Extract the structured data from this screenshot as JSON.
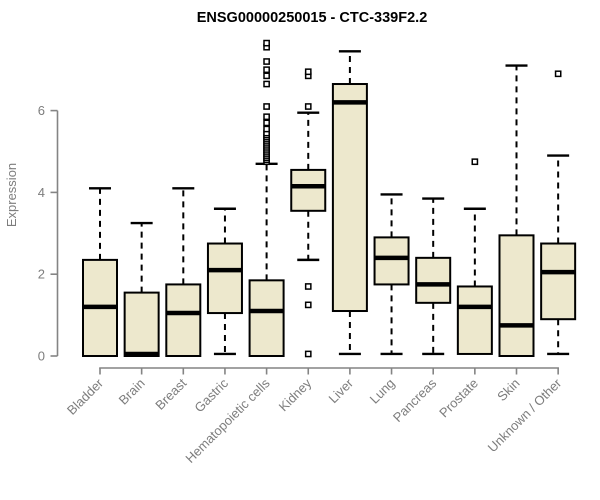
{
  "title": "ENSG00000250015 - CTC-339F2.2",
  "chart_data": {
    "type": "boxplot",
    "title": "ENSG00000250015 - CTC-339F2.2",
    "ylabel": "Expression",
    "xlabel": "",
    "ylim": [
      0,
      7.8
    ],
    "yticks": [
      0,
      2,
      4,
      6
    ],
    "grid": false,
    "legend": "none",
    "categories": [
      "Bladder",
      "Brain",
      "Breast",
      "Gastric",
      "Hematopoietic cells",
      "Kidney",
      "Liver",
      "Lung",
      "Pancreas",
      "Prostate",
      "Skin",
      "Unknown / Other"
    ],
    "boxes": [
      {
        "category": "Bladder",
        "whisker_low": 0.0,
        "q1": 0.0,
        "median": 1.2,
        "q3": 2.35,
        "whisker_high": 4.1,
        "outliers": []
      },
      {
        "category": "Brain",
        "whisker_low": 0.0,
        "q1": 0.0,
        "median": 0.05,
        "q3": 1.55,
        "whisker_high": 3.25,
        "outliers": []
      },
      {
        "category": "Breast",
        "whisker_low": 0.0,
        "q1": 0.0,
        "median": 1.05,
        "q3": 1.75,
        "whisker_high": 4.1,
        "outliers": []
      },
      {
        "category": "Gastric",
        "whisker_low": 0.05,
        "q1": 1.05,
        "median": 2.1,
        "q3": 2.75,
        "whisker_high": 3.6,
        "outliers": []
      },
      {
        "category": "Hematopoietic cells",
        "whisker_low": 0.0,
        "q1": 0.0,
        "median": 1.1,
        "q3": 1.85,
        "whisker_high": 4.7,
        "outliers": [
          4.75,
          4.8,
          4.85,
          4.9,
          4.95,
          5.0,
          5.05,
          5.1,
          5.15,
          5.2,
          5.25,
          5.3,
          5.35,
          5.4,
          5.45,
          5.55,
          5.7,
          5.85,
          6.1,
          6.65,
          6.85,
          7.0,
          7.2,
          7.55,
          7.65
        ]
      },
      {
        "category": "Kidney",
        "whisker_low": 2.35,
        "q1": 3.55,
        "median": 4.15,
        "q3": 4.55,
        "whisker_high": 5.95,
        "outliers": [
          6.1,
          6.85,
          6.95,
          1.7,
          1.25,
          0.05
        ]
      },
      {
        "category": "Liver",
        "whisker_low": 0.05,
        "q1": 1.1,
        "median": 6.2,
        "q3": 6.65,
        "whisker_high": 7.45,
        "outliers": []
      },
      {
        "category": "Lung",
        "whisker_low": 0.05,
        "q1": 1.75,
        "median": 2.4,
        "q3": 2.9,
        "whisker_high": 3.95,
        "outliers": []
      },
      {
        "category": "Pancreas",
        "whisker_low": 0.05,
        "q1": 1.3,
        "median": 1.75,
        "q3": 2.4,
        "whisker_high": 3.85,
        "outliers": []
      },
      {
        "category": "Prostate",
        "whisker_low": 0.05,
        "q1": 0.05,
        "median": 1.2,
        "q3": 1.7,
        "whisker_high": 3.6,
        "outliers": [
          4.75
        ]
      },
      {
        "category": "Skin",
        "whisker_low": 0.0,
        "q1": 0.0,
        "median": 0.75,
        "q3": 2.95,
        "whisker_high": 7.1,
        "outliers": []
      },
      {
        "category": "Unknown / Other",
        "whisker_low": 0.05,
        "q1": 0.9,
        "median": 2.05,
        "q3": 2.75,
        "whisker_high": 4.9,
        "outliers": [
          6.9
        ]
      }
    ],
    "colors": {
      "box_fill": "#EDE8CD",
      "box_stroke": "#000000",
      "median": "#000000",
      "whisker": "#000000",
      "outlier_stroke": "#000000",
      "outlier_fill": "#ffffff",
      "axis": "#848484",
      "label": "#7d7d7d",
      "title": "#000000",
      "background": "#ffffff"
    }
  }
}
